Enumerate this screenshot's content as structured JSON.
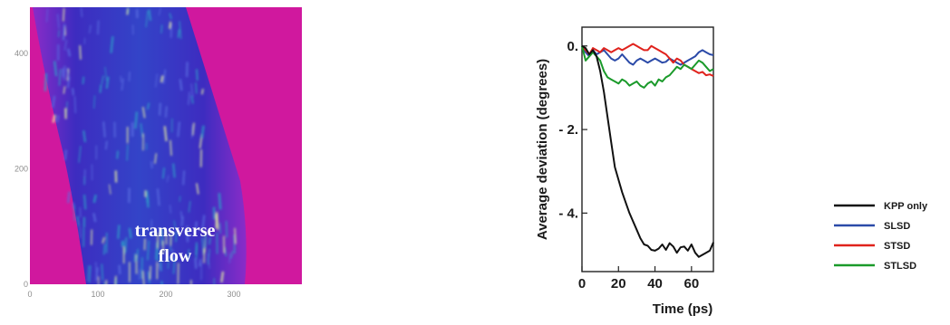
{
  "chart_data": [
    {
      "type": "heatmap",
      "title": "",
      "xlabel": "",
      "ylabel": "",
      "x_ticks": [
        "0",
        "100",
        "200",
        "300"
      ],
      "y_ticks": [
        "0",
        "200",
        "400"
      ],
      "xlim": [
        0,
        400
      ],
      "ylim": [
        0,
        480
      ],
      "annotation": [
        "transverse",
        "flow"
      ],
      "colors": {
        "background": "#d0189e",
        "band": "#3d2cc0",
        "streak": "#2ca0c8",
        "highlight": "#e8f0a0"
      }
    },
    {
      "type": "line",
      "title": "",
      "xlabel": "Time (ps)",
      "ylabel": "Average deviation (degrees)",
      "xlim": [
        0,
        72
      ],
      "ylim": [
        -5.4,
        0.45
      ],
      "x_ticks": [
        {
          "value": 0,
          "label": "0"
        },
        {
          "value": 20,
          "label": "20"
        },
        {
          "value": 40,
          "label": "40"
        },
        {
          "value": 60,
          "label": "60"
        }
      ],
      "y_ticks": [
        {
          "value": 0,
          "label": "0."
        },
        {
          "value": -2,
          "label": "- 2."
        },
        {
          "value": -4,
          "label": "- 4."
        }
      ],
      "grid": false,
      "legend_position": "right",
      "series": [
        {
          "name": "KPP only",
          "color": "#111111",
          "x": [
            0,
            2,
            4,
            6,
            8,
            10,
            12,
            14,
            16,
            18,
            20,
            22,
            24,
            26,
            28,
            30,
            32,
            34,
            36,
            38,
            40,
            42,
            44,
            46,
            48,
            50,
            52,
            54,
            56,
            58,
            60,
            62,
            64,
            66,
            68,
            70,
            72
          ],
          "values": [
            0,
            -0.05,
            -0.2,
            -0.1,
            -0.25,
            -0.6,
            -1.1,
            -1.7,
            -2.3,
            -2.9,
            -3.2,
            -3.5,
            -3.75,
            -4.0,
            -4.2,
            -4.4,
            -4.6,
            -4.75,
            -4.78,
            -4.88,
            -4.9,
            -4.85,
            -4.75,
            -4.88,
            -4.72,
            -4.8,
            -4.95,
            -4.82,
            -4.8,
            -4.9,
            -4.75,
            -4.95,
            -5.05,
            -5.0,
            -4.95,
            -4.9,
            -4.7
          ]
        },
        {
          "name": "SLSD",
          "color": "#2b4aa8",
          "x": [
            0,
            2,
            4,
            6,
            8,
            10,
            12,
            14,
            16,
            18,
            20,
            22,
            24,
            26,
            28,
            30,
            32,
            34,
            36,
            38,
            40,
            42,
            44,
            46,
            48,
            50,
            52,
            54,
            56,
            58,
            60,
            62,
            64,
            66,
            68,
            70,
            72
          ],
          "values": [
            0,
            -0.15,
            -0.25,
            -0.1,
            -0.2,
            -0.15,
            -0.1,
            -0.2,
            -0.3,
            -0.35,
            -0.3,
            -0.2,
            -0.3,
            -0.4,
            -0.45,
            -0.35,
            -0.3,
            -0.35,
            -0.4,
            -0.35,
            -0.3,
            -0.35,
            -0.4,
            -0.38,
            -0.3,
            -0.35,
            -0.4,
            -0.45,
            -0.4,
            -0.35,
            -0.3,
            -0.25,
            -0.15,
            -0.1,
            -0.15,
            -0.2,
            -0.22
          ]
        },
        {
          "name": "STSD",
          "color": "#e0221c",
          "x": [
            0,
            2,
            4,
            6,
            8,
            10,
            12,
            14,
            16,
            18,
            20,
            22,
            24,
            26,
            28,
            30,
            32,
            34,
            36,
            38,
            40,
            42,
            44,
            46,
            48,
            50,
            52,
            54,
            56,
            58,
            60,
            62,
            64,
            66,
            68,
            70,
            72
          ],
          "values": [
            0,
            -0.1,
            -0.2,
            -0.05,
            -0.1,
            -0.15,
            -0.05,
            -0.1,
            -0.15,
            -0.1,
            -0.05,
            -0.1,
            -0.05,
            0.0,
            0.05,
            0.0,
            -0.05,
            -0.1,
            -0.1,
            0.0,
            -0.05,
            -0.1,
            -0.15,
            -0.2,
            -0.3,
            -0.4,
            -0.3,
            -0.35,
            -0.45,
            -0.5,
            -0.55,
            -0.6,
            -0.65,
            -0.62,
            -0.7,
            -0.68,
            -0.72
          ]
        },
        {
          "name": "STLSD",
          "color": "#1a9a2a",
          "x": [
            0,
            2,
            4,
            6,
            8,
            10,
            12,
            14,
            16,
            18,
            20,
            22,
            24,
            26,
            28,
            30,
            32,
            34,
            36,
            38,
            40,
            42,
            44,
            46,
            48,
            50,
            52,
            54,
            56,
            58,
            60,
            62,
            64,
            66,
            68,
            70,
            72
          ],
          "values": [
            0,
            -0.35,
            -0.25,
            -0.15,
            -0.25,
            -0.35,
            -0.6,
            -0.75,
            -0.8,
            -0.85,
            -0.9,
            -0.8,
            -0.85,
            -0.95,
            -0.9,
            -0.85,
            -0.95,
            -1.0,
            -0.9,
            -0.85,
            -0.95,
            -0.8,
            -0.85,
            -0.75,
            -0.7,
            -0.6,
            -0.5,
            -0.55,
            -0.45,
            -0.5,
            -0.55,
            -0.45,
            -0.35,
            -0.4,
            -0.5,
            -0.6,
            -0.55
          ]
        }
      ]
    }
  ]
}
